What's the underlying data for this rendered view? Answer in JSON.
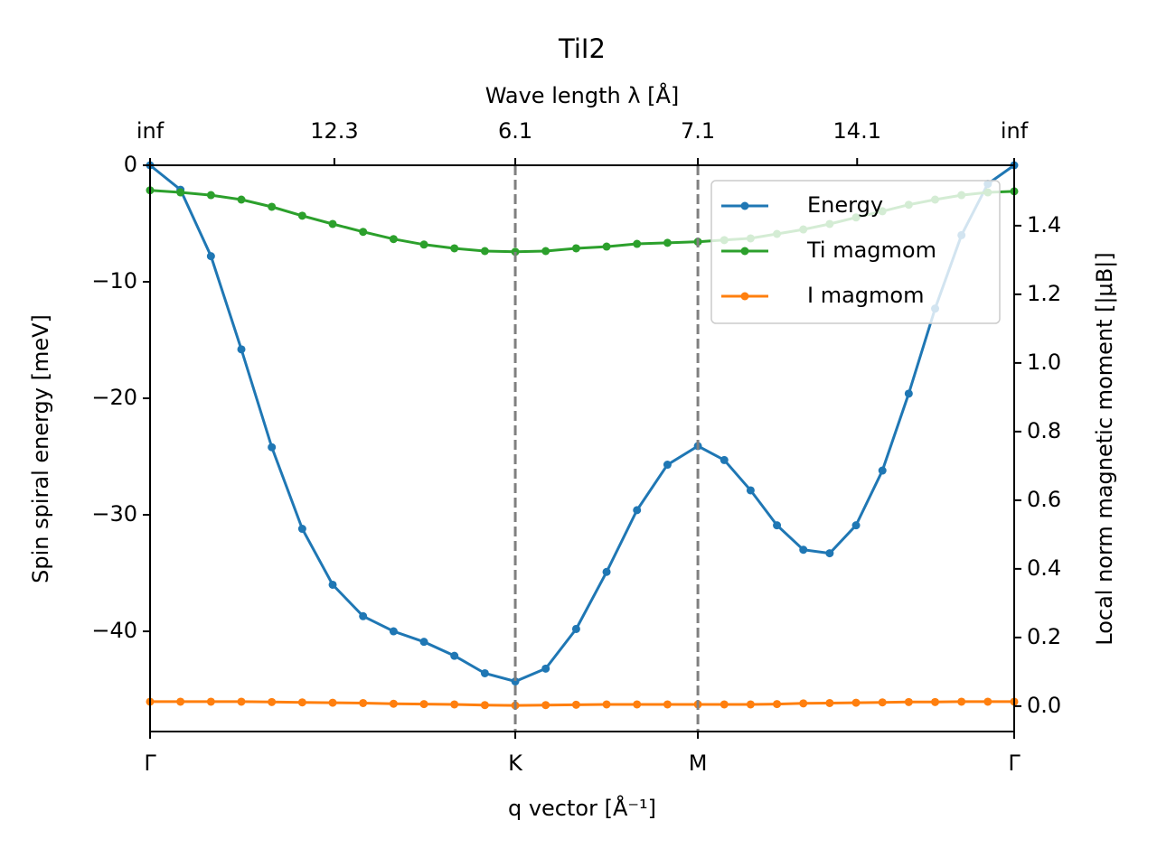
{
  "chart_data": {
    "type": "line",
    "title": "TiI2",
    "xlabel": "q vector [Å⁻¹]",
    "x2label": "Wave length λ [Å]",
    "ylabel": "Spin spiral energy [meV]",
    "y2label": "Local norm magnetic moment [|μB|]",
    "x": [
      0,
      0.0833,
      0.1667,
      0.25,
      0.3333,
      0.4167,
      0.5,
      0.5833,
      0.6667,
      0.75,
      0.8333,
      0.9167,
      1,
      1.0833,
      1.1667,
      1.25,
      1.3333,
      1.4167,
      1.5,
      1.5722,
      1.6443,
      1.7165,
      1.7887,
      1.8608,
      1.933,
      2.0052,
      2.0773,
      2.1495,
      2.2217,
      2.2938,
      2.366
    ],
    "series": [
      {
        "name": "Energy",
        "color": "#1f77b4",
        "values": [
          0,
          -2.1,
          -7.8,
          -15.8,
          -24.2,
          -31.2,
          -36.0,
          -38.7,
          -40.0,
          -40.9,
          -42.1,
          -43.6,
          -44.3,
          -43.2,
          -39.8,
          -34.9,
          -29.6,
          -25.7,
          -24.1,
          -25.3,
          -27.9,
          -30.9,
          -33.0,
          -33.3,
          -30.9,
          -26.2,
          -19.6,
          -12.3,
          -6.0,
          -1.6,
          0
        ]
      },
      {
        "name": "Ti magmom",
        "color": "#2ca02c",
        "axis": "y2",
        "values": [
          1.503,
          1.497,
          1.489,
          1.476,
          1.455,
          1.429,
          1.405,
          1.382,
          1.361,
          1.345,
          1.334,
          1.326,
          1.324,
          1.326,
          1.334,
          1.339,
          1.347,
          1.35,
          1.353,
          1.358,
          1.363,
          1.376,
          1.389,
          1.405,
          1.424,
          1.442,
          1.461,
          1.476,
          1.489,
          1.497,
          1.5
        ]
      },
      {
        "name": "I magmom",
        "color": "#ff7f0e",
        "axis": "y2",
        "values": [
          0.013,
          0.013,
          0.013,
          0.013,
          0.012,
          0.011,
          0.01,
          0.009,
          0.007,
          0.006,
          0.005,
          0.003,
          0.002,
          0.003,
          0.004,
          0.005,
          0.005,
          0.005,
          0.005,
          0.005,
          0.005,
          0.006,
          0.008,
          0.009,
          0.01,
          0.011,
          0.012,
          0.012,
          0.013,
          0.013,
          0.013
        ]
      }
    ],
    "xlim": [
      0,
      2.366
    ],
    "xticks": [
      {
        "value": 0,
        "label": "Γ"
      },
      {
        "value": 1,
        "label": "K"
      },
      {
        "value": 1.5,
        "label": "M"
      },
      {
        "value": 2.366,
        "label": "Γ"
      }
    ],
    "x2ticks": [
      {
        "value": 0,
        "label": "inf"
      },
      {
        "value": 0.5047,
        "label": "12.3"
      },
      {
        "value": 1,
        "label": "6.1"
      },
      {
        "value": 1.5,
        "label": "7.1"
      },
      {
        "value": 1.936,
        "label": "14.1"
      },
      {
        "value": 2.366,
        "label": "inf"
      }
    ],
    "vlines": [
      1,
      1.5
    ],
    "vline_color": "#808080",
    "ylim": [
      -48.6,
      0
    ],
    "yticks": [
      0,
      {
        "value": -10,
        "label": "−10"
      },
      {
        "value": -20,
        "label": "−20"
      },
      {
        "value": -30,
        "label": "−30"
      },
      {
        "value": -40,
        "label": "−40"
      }
    ],
    "y2lim": [
      -0.074,
      1.576
    ],
    "y2ticks": [
      {
        "value": 0,
        "label": "0.0"
      },
      0.2,
      0.4,
      0.6,
      0.8,
      {
        "value": 1,
        "label": "1.0"
      },
      1.2,
      1.4
    ],
    "legend": "upper right"
  }
}
